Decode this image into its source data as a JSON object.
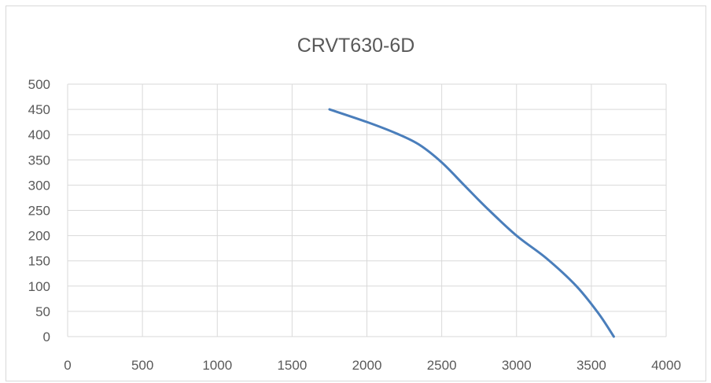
{
  "chart_data": {
    "type": "line",
    "title": "CRVT630-6D",
    "xlabel": "",
    "ylabel": "",
    "xlim": [
      0,
      4000
    ],
    "ylim": [
      0,
      500
    ],
    "x_ticks": [
      0,
      500,
      1000,
      1500,
      2000,
      2500,
      3000,
      3500,
      4000
    ],
    "y_ticks": [
      0,
      50,
      100,
      150,
      200,
      250,
      300,
      350,
      400,
      450,
      500
    ],
    "grid": true,
    "legend": "none",
    "series": [
      {
        "color": "#4a7ebb",
        "x": [
          1750,
          2000,
          2200,
          2350,
          2500,
          2650,
          2800,
          3000,
          3200,
          3400,
          3550,
          3650
        ],
        "y": [
          450,
          425,
          402,
          380,
          345,
          300,
          255,
          200,
          155,
          100,
          45,
          0
        ]
      }
    ]
  }
}
